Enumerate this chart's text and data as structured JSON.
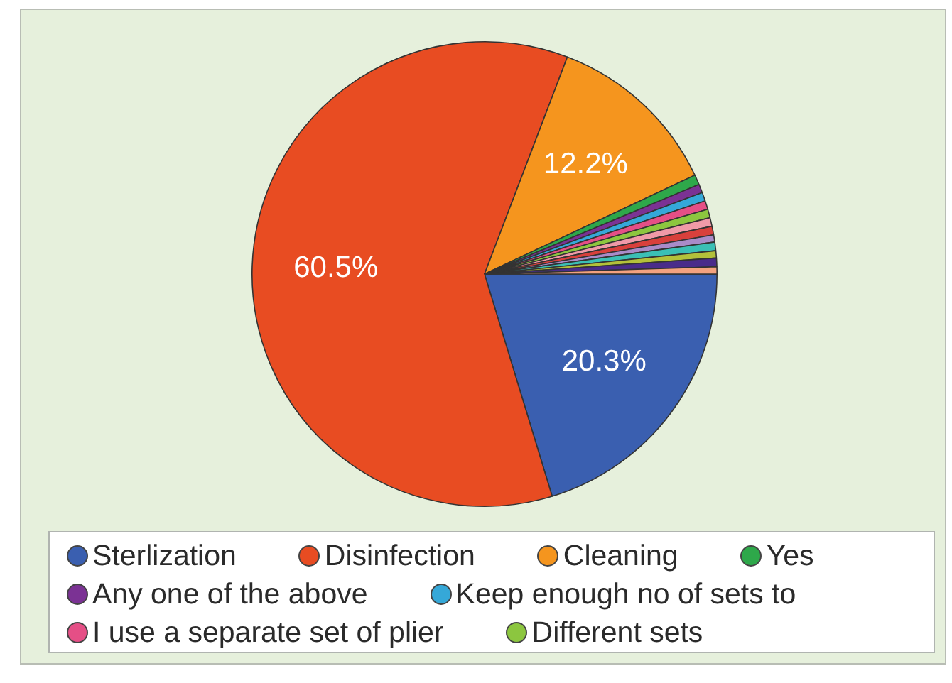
{
  "chart_data": {
    "type": "pie",
    "categories": [
      "Sterlization",
      "Disinfection",
      "Cleaning",
      "Yes",
      "Any one of the above",
      "Keep enough no of sets to",
      "I use a separate set of plier",
      "Different sets",
      null,
      null,
      null,
      null,
      null,
      null,
      null
    ],
    "values": [
      20.3,
      60.5,
      12.2,
      0.7,
      0.6,
      0.6,
      0.6,
      0.6,
      0.6,
      0.6,
      0.5,
      0.6,
      0.5,
      0.6,
      0.5
    ],
    "colors": [
      "#3a5fb0",
      "#e84c22",
      "#f5951e",
      "#2ea84a",
      "#7b3294",
      "#35a8d8",
      "#e54f86",
      "#8cc63f",
      "#f09aa8",
      "#d8403c",
      "#a98bc8",
      "#3bbfb5",
      "#b3c13a",
      "#4a2c8a",
      "#f4a27f"
    ],
    "value_labels": [
      "20.3%",
      "60.5%",
      "12.2%",
      null,
      null,
      null,
      null,
      null,
      null,
      null,
      null,
      null,
      null,
      null,
      null
    ],
    "legend": "bottom"
  }
}
